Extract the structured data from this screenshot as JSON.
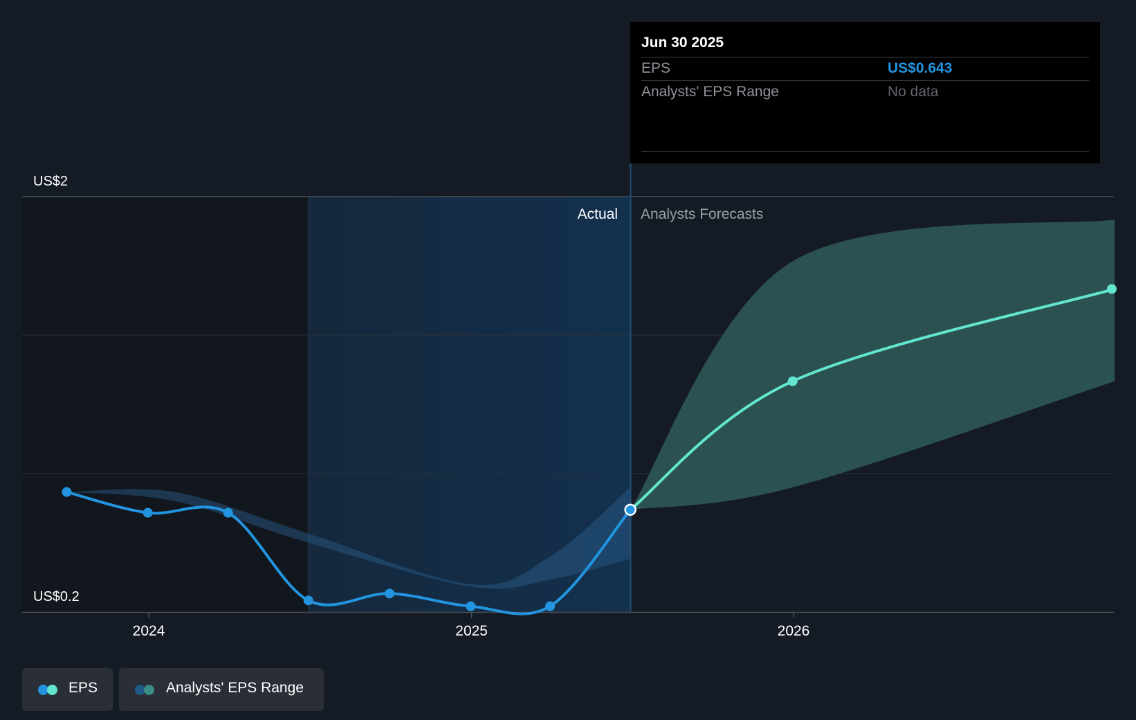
{
  "chart_data": {
    "type": "line",
    "x_ticks": [
      "2024",
      "2025",
      "2026"
    ],
    "y_axis_labels": {
      "top": "US$2",
      "bottom": "US$0.2"
    },
    "ylim": [
      0.2,
      2.0
    ],
    "section_labels": {
      "actual": "Actual",
      "forecast": "Analysts Forecasts"
    },
    "series": [
      {
        "name": "EPS",
        "color": "#2394df",
        "kind": "actual",
        "points": [
          {
            "x": "2023-09-30",
            "y": 0.72
          },
          {
            "x": "2023-12-31",
            "y": 0.63
          },
          {
            "x": "2024-03-31",
            "y": 0.63
          },
          {
            "x": "2024-06-30",
            "y": 0.25
          },
          {
            "x": "2024-09-30",
            "y": 0.28
          },
          {
            "x": "2024-12-31",
            "y": 0.225
          },
          {
            "x": "2025-03-31",
            "y": 0.225
          },
          {
            "x": "2025-06-30",
            "y": 0.643
          }
        ]
      },
      {
        "name": "EPS",
        "color": "#63e6d0",
        "kind": "forecast",
        "points": [
          {
            "x": "2025-06-30",
            "y": 0.643
          },
          {
            "x": "2025-12-31",
            "y": 1.2
          },
          {
            "x": "2026-12-31",
            "y": 1.6
          }
        ]
      }
    ],
    "past_range": {
      "name": "Analysts' EPS Range",
      "upper": [
        {
          "x": "2023-09-30",
          "y": 0.72
        },
        {
          "x": "2024-01-31",
          "y": 0.72
        },
        {
          "x": "2024-06-30",
          "y": 0.54
        },
        {
          "x": "2024-12-31",
          "y": 0.32
        },
        {
          "x": "2025-03-31",
          "y": 0.44
        },
        {
          "x": "2025-06-30",
          "y": 0.74
        }
      ],
      "lower": [
        {
          "x": "2023-09-30",
          "y": 0.72
        },
        {
          "x": "2024-01-31",
          "y": 0.68
        },
        {
          "x": "2024-06-30",
          "y": 0.5
        },
        {
          "x": "2024-12-31",
          "y": 0.31
        },
        {
          "x": "2025-03-31",
          "y": 0.34
        },
        {
          "x": "2025-06-30",
          "y": 0.43
        }
      ]
    },
    "forecast_range": {
      "name": "Analysts' EPS Range",
      "upper": [
        {
          "x": "2025-06-30",
          "y": 0.643
        },
        {
          "x": "2025-12-31",
          "y": 1.72
        },
        {
          "x": "2026-12-31",
          "y": 1.9
        }
      ],
      "lower": [
        {
          "x": "2025-06-30",
          "y": 0.643
        },
        {
          "x": "2025-12-31",
          "y": 0.74
        },
        {
          "x": "2026-12-31",
          "y": 1.2
        }
      ]
    },
    "grid": true
  },
  "tooltip": {
    "date": "Jun 30 2025",
    "rows": [
      {
        "label": "EPS",
        "value": "US$0.643",
        "color": "#2394df"
      },
      {
        "label": "Analysts' EPS Range",
        "value": "No data",
        "color": "#62666d"
      }
    ]
  },
  "legend": [
    {
      "label": "EPS",
      "colors": [
        "#2394df",
        "#63e6d0"
      ]
    },
    {
      "label": "Analysts' EPS Range",
      "colors": [
        "#1f5a86",
        "#3c8d87"
      ]
    }
  ]
}
